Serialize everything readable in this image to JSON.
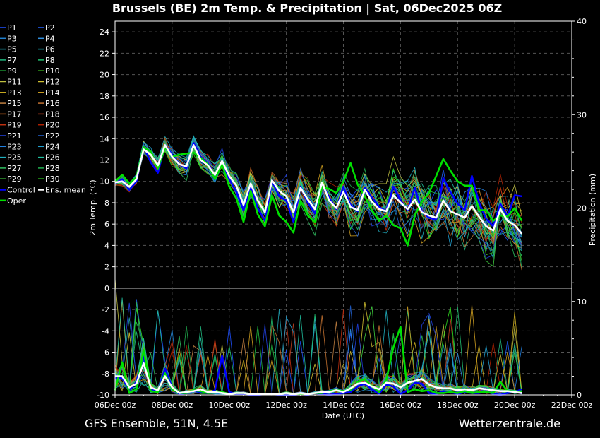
{
  "header": {
    "title": "Brussels  (BE)  2m Temp. & Precipitation | Sat, 06Dec2025 06Z"
  },
  "footer": {
    "model": "GFS Ensemble, 51N, 4.5E",
    "site": "Wetterzentrale.de"
  },
  "colors": {
    "background": "#000000",
    "control": "#0000ff",
    "ens_mean": "#ffffff",
    "oper": "#00e000",
    "zero_line": "#ffffff"
  },
  "chart_data": {
    "type": "line",
    "title": "Brussels  (BE)  2m Temp. & Precipitation | Sat, 06Dec2025 06Z",
    "xlabel": "Date (UTC)",
    "ylabel": "2m Temp. (°C)",
    "y2label": "Precipitation (mm)",
    "ylim": [
      -10,
      25
    ],
    "y2lim": [
      0,
      40
    ],
    "xlim": [
      "06Dec 00z",
      "22Dec 00z"
    ],
    "x_step_hours": 6,
    "grid": true,
    "legend_position": "left",
    "x_ticks": [
      "06Dec 00z",
      "08Dec 00z",
      "10Dec 00z",
      "12Dec 00z",
      "14Dec 00z",
      "16Dec 00z",
      "18Dec 00z",
      "20Dec 00z",
      "22Dec 00z"
    ],
    "y_ticks": [
      "24",
      "22",
      "20",
      "18",
      "16",
      "14",
      "12",
      "10",
      "8",
      "6",
      "4",
      "2",
      "0",
      "-2",
      "-4",
      "-6",
      "-8",
      "-10"
    ],
    "y2_ticks": [
      "40",
      "30",
      "20",
      "10",
      "0"
    ],
    "legend": [
      "P1",
      "P2",
      "P3",
      "P4",
      "P5",
      "P6",
      "P7",
      "P8",
      "P9",
      "P10",
      "P11",
      "P12",
      "P13",
      "P14",
      "P15",
      "P16",
      "P17",
      "P18",
      "P19",
      "P20",
      "P21",
      "P22",
      "P23",
      "P24",
      "P25",
      "P26",
      "P27",
      "P28",
      "P29",
      "P30",
      "Control",
      "Ens. mean",
      "Oper"
    ],
    "member_colors": [
      "#1e50ff",
      "#2060ff",
      "#2080d0",
      "#3090e0",
      "#20a0b0",
      "#20b0c0",
      "#20b880",
      "#20c070",
      "#20c040",
      "#40d020",
      "#c0c040",
      "#d0c030",
      "#d0b020",
      "#d0a020",
      "#c08040",
      "#c07030",
      "#c06020",
      "#c04020",
      "#c03010",
      "#b02000",
      "#2040e0",
      "#2060d0",
      "#2080e0",
      "#20a0d0",
      "#20b0c0",
      "#20c0a0",
      "#30c060",
      "#20b050",
      "#40d040",
      "#30e020"
    ],
    "temperature_series": {
      "ens_mean": [
        9.9,
        10,
        9.5,
        10.2,
        13,
        12.5,
        11.5,
        13.4,
        12.3,
        11.6,
        11.4,
        13.4,
        12,
        11.5,
        10.6,
        11.9,
        10.5,
        9.6,
        7.8,
        9.8,
        8.2,
        7.1,
        10.1,
        9.1,
        8.6,
        7.1,
        9.4,
        8.3,
        7.4,
        9.9,
        8.2,
        7.5,
        9,
        7.6,
        7.3,
        9.2,
        8.1,
        7.4,
        7.2,
        8.7,
        8,
        7.4,
        8.3,
        7.1,
        6.8,
        6.6,
        8.2,
        7.2,
        6.9,
        6.6,
        7.7,
        6.7,
        5.8,
        5.4,
        7.4,
        6.3,
        5.9,
        5.1
      ],
      "control": [
        9.8,
        10.2,
        9.2,
        10,
        13.2,
        11.8,
        10.8,
        13.4,
        12.5,
        11.6,
        11.2,
        13.6,
        12.3,
        11.7,
        10.5,
        11.8,
        10.2,
        9,
        7.3,
        9.5,
        7.5,
        6.3,
        10,
        8.6,
        8.2,
        6.2,
        9.5,
        8,
        7,
        9.8,
        8.5,
        7.4,
        9.5,
        7.8,
        7.2,
        9.4,
        8.5,
        7.6,
        7.2,
        9.5,
        8.2,
        7.3,
        9.4,
        7.2,
        6.6,
        6.4,
        10.3,
        9,
        7.9,
        7.3,
        10.5,
        8,
        6.5,
        5.8,
        7.9,
        6.7,
        8.7,
        8.6
      ],
      "oper": [
        10,
        10.6,
        9.8,
        10.4,
        13.2,
        12.8,
        11.2,
        13.2,
        12.3,
        12.5,
        12.6,
        12.7,
        12.2,
        11.6,
        10.2,
        11.6,
        9.5,
        8.4,
        6.2,
        9.1,
        6.9,
        5.8,
        8.7,
        6.8,
        6.2,
        5.2,
        8.2,
        6.8,
        6.2,
        9.5,
        9.3,
        8.9,
        10,
        11.7,
        9.7,
        8.6,
        7.3,
        6.3,
        6.8,
        5.9,
        5.6,
        4,
        6.8,
        8.1,
        8.9,
        10.5,
        12.1,
        11,
        10,
        9.6,
        9.6,
        7.3,
        7.3,
        6.3,
        6.8,
        6.7,
        7.5,
        6.3
      ]
    },
    "precipitation_series": {
      "ens_mean": [
        2,
        2,
        0.8,
        1.2,
        3.4,
        0.8,
        0.5,
        2,
        0.8,
        0.2,
        0.3,
        0.4,
        0.6,
        0.3,
        0.3,
        0.2,
        0.1,
        0.2,
        0.2,
        0.1,
        0.1,
        0.1,
        0.1,
        0.1,
        0.2,
        0.1,
        0.2,
        0.1,
        0.2,
        0.3,
        0.3,
        0.5,
        0.3,
        0.7,
        1.2,
        1.3,
        0.9,
        0.6,
        1.3,
        1.2,
        0.8,
        1.3,
        1.5,
        1.7,
        1.1,
        0.8,
        0.7,
        0.7,
        0.5,
        0.6,
        0.5,
        0.7,
        0.6,
        0.5,
        0.4,
        0.4,
        0.3,
        0.2
      ],
      "control": [
        1.8,
        1.8,
        0.5,
        1.4,
        4.2,
        0.6,
        0.3,
        2.8,
        0.8,
        0.1,
        0.2,
        0.4,
        0.3,
        0.2,
        0.5,
        4.2,
        0.3,
        0.1,
        0.1,
        0,
        0,
        0.1,
        0.1,
        0,
        0,
        0,
        0.1,
        0,
        0.2,
        0.1,
        0,
        0.1,
        0.2,
        0.3,
        0.9,
        1.2,
        0.6,
        0.1,
        1.1,
        0.9,
        0.1,
        0.5,
        1.3,
        1.2,
        0.2,
        0.1,
        0.4,
        0.3,
        0.1,
        0.3,
        0.2,
        0.2,
        0.4,
        0.1,
        0,
        0.2,
        0.3,
        0.6
      ],
      "oper": [
        0.5,
        3.5,
        0.2,
        0.6,
        4.8,
        0.4,
        0.3,
        2.3,
        0.6,
        0.2,
        0.2,
        0.5,
        0.4,
        0.2,
        0.3,
        0.3,
        0.1,
        0.2,
        0.2,
        0.1,
        0.1,
        0.1,
        0.1,
        0.1,
        0.2,
        0.1,
        0.1,
        0.1,
        0.2,
        0.2,
        0.4,
        0.5,
        0.4,
        0.5,
        1.4,
        1.7,
        0.9,
        0.3,
        1.6,
        5.1,
        7.3,
        0.3,
        0.6,
        0.4,
        0.5,
        0.2,
        0.2,
        0.3,
        0.2,
        0.4,
        0.2,
        0.3,
        0.3,
        0.2,
        1.4,
        0.4,
        0.3,
        0.4
      ]
    }
  }
}
